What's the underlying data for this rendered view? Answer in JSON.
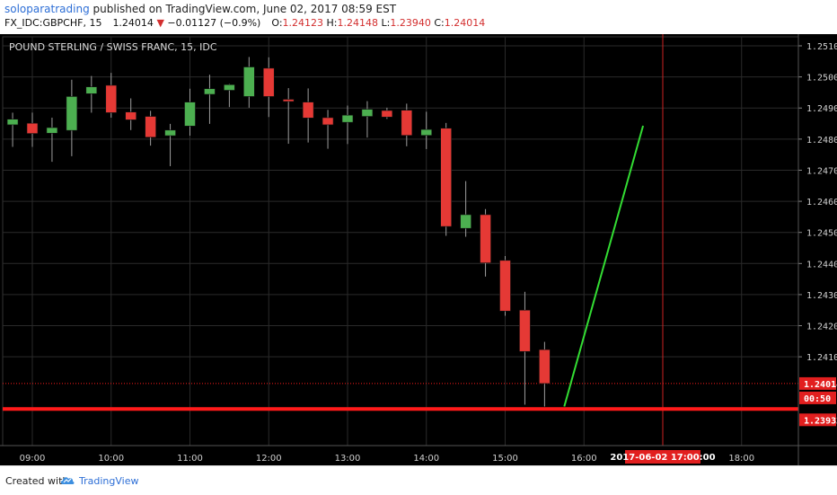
{
  "header": {
    "author": "soloparatrading",
    "published_text": "published on TradingView.com, June 02, 2017 08:59 EST",
    "symbol": "FX_IDC:GBPCHF, 15",
    "last_price": "1.24014",
    "change": "−0.01127 (−0.9%)",
    "open_label": "O:",
    "open": "1.24123",
    "high_label": "H:",
    "high": "1.24148",
    "low_label": "L:",
    "low": "1.23940",
    "close_label": "C:",
    "close": "1.24014"
  },
  "footer": {
    "created_with": "Created with",
    "brand": "TradingView"
  },
  "colors": {
    "background": "#000000",
    "up_candle": "#4caf50",
    "down_candle": "#e53935",
    "wick": "#9e9e9e",
    "grid": "#2a2a2a",
    "support_line": "#ff1a1a",
    "trend_line": "#33dd33",
    "vline": "#cc2222"
  },
  "chart_data": {
    "type": "candlestick",
    "title": "POUND STERLING / SWISS FRANC, 15, IDC",
    "ylim": [
      1.2382,
      1.2514
    ],
    "y_ticks": [
      "1.25100",
      "1.25000",
      "1.24900",
      "1.24800",
      "1.24700",
      "1.24600",
      "1.24500",
      "1.24400",
      "1.24300",
      "1.24200",
      "1.24100"
    ],
    "x_ticks": [
      "09:00",
      "10:00",
      "11:00",
      "12:00",
      "13:00",
      "14:00",
      "15:00",
      "16:00",
      "18:00"
    ],
    "crosshair_time_label": "2017-06-02 17:00:00",
    "last_price_label": "1.24014",
    "countdown_label": "00:50",
    "support_label": "1.23932",
    "support_level": 1.23932,
    "last_price": 1.24014,
    "candles": [
      {
        "time": "08:30",
        "open": 1.24935,
        "high": 1.24966,
        "low": 1.24789,
        "close": 1.24806
      },
      {
        "time": "08:45",
        "open": 1.24846,
        "high": 1.24885,
        "low": 1.24775,
        "close": 1.24864
      },
      {
        "time": "09:00",
        "open": 1.24851,
        "high": 1.24885,
        "low": 1.24775,
        "close": 1.24818
      },
      {
        "time": "09:15",
        "open": 1.24819,
        "high": 1.24869,
        "low": 1.24727,
        "close": 1.24837
      },
      {
        "time": "09:30",
        "open": 1.24828,
        "high": 1.24991,
        "low": 1.24745,
        "close": 1.24937
      },
      {
        "time": "09:45",
        "open": 1.24946,
        "high": 1.25003,
        "low": 1.24885,
        "close": 1.24968
      },
      {
        "time": "10:00",
        "open": 1.24973,
        "high": 1.25013,
        "low": 1.24869,
        "close": 1.24885
      },
      {
        "time": "10:15",
        "open": 1.24887,
        "high": 1.24931,
        "low": 1.24829,
        "close": 1.24862
      },
      {
        "time": "10:30",
        "open": 1.24873,
        "high": 1.24891,
        "low": 1.24779,
        "close": 1.24806
      },
      {
        "time": "10:45",
        "open": 1.24811,
        "high": 1.24849,
        "low": 1.24713,
        "close": 1.24829
      },
      {
        "time": "11:00",
        "open": 1.24842,
        "high": 1.24962,
        "low": 1.24811,
        "close": 1.24919
      },
      {
        "time": "11:15",
        "open": 1.24944,
        "high": 1.25007,
        "low": 1.24849,
        "close": 1.24962
      },
      {
        "time": "11:30",
        "open": 1.24957,
        "high": 1.24977,
        "low": 1.24903,
        "close": 1.24975
      },
      {
        "time": "11:45",
        "open": 1.24937,
        "high": 1.25064,
        "low": 1.24901,
        "close": 1.25032
      },
      {
        "time": "12:00",
        "open": 1.25028,
        "high": 1.25063,
        "low": 1.24871,
        "close": 1.24937
      },
      {
        "time": "12:15",
        "open": 1.24928,
        "high": 1.24964,
        "low": 1.24785,
        "close": 1.24921
      },
      {
        "time": "12:30",
        "open": 1.24919,
        "high": 1.24963,
        "low": 1.24789,
        "close": 1.24868
      },
      {
        "time": "12:45",
        "open": 1.24869,
        "high": 1.24894,
        "low": 1.24769,
        "close": 1.24846
      },
      {
        "time": "13:00",
        "open": 1.24854,
        "high": 1.24908,
        "low": 1.24784,
        "close": 1.24877
      },
      {
        "time": "13:15",
        "open": 1.24873,
        "high": 1.24922,
        "low": 1.24805,
        "close": 1.24896
      },
      {
        "time": "13:30",
        "open": 1.24892,
        "high": 1.24901,
        "low": 1.24865,
        "close": 1.24871
      },
      {
        "time": "13:45",
        "open": 1.24893,
        "high": 1.24914,
        "low": 1.24777,
        "close": 1.24812
      },
      {
        "time": "14:00",
        "open": 1.24812,
        "high": 1.24888,
        "low": 1.24768,
        "close": 1.24831
      },
      {
        "time": "14:15",
        "open": 1.24835,
        "high": 1.24852,
        "low": 1.24489,
        "close": 1.24519
      },
      {
        "time": "14:30",
        "open": 1.24513,
        "high": 1.24665,
        "low": 1.24486,
        "close": 1.24557
      },
      {
        "time": "14:45",
        "open": 1.24557,
        "high": 1.24575,
        "low": 1.24358,
        "close": 1.24402
      },
      {
        "time": "15:00",
        "open": 1.2441,
        "high": 1.24424,
        "low": 1.24232,
        "close": 1.24247
      },
      {
        "time": "15:15",
        "open": 1.2425,
        "high": 1.24309,
        "low": 1.23946,
        "close": 1.24117
      },
      {
        "time": "15:30",
        "open": 1.24123,
        "high": 1.24148,
        "low": 1.2394,
        "close": 1.24014
      }
    ],
    "trend_line": {
      "from": {
        "time": "15:45",
        "price": 1.2394
      },
      "to": {
        "time": "16:45",
        "price": 1.24843
      }
    },
    "crosshair_time": "17:00"
  }
}
